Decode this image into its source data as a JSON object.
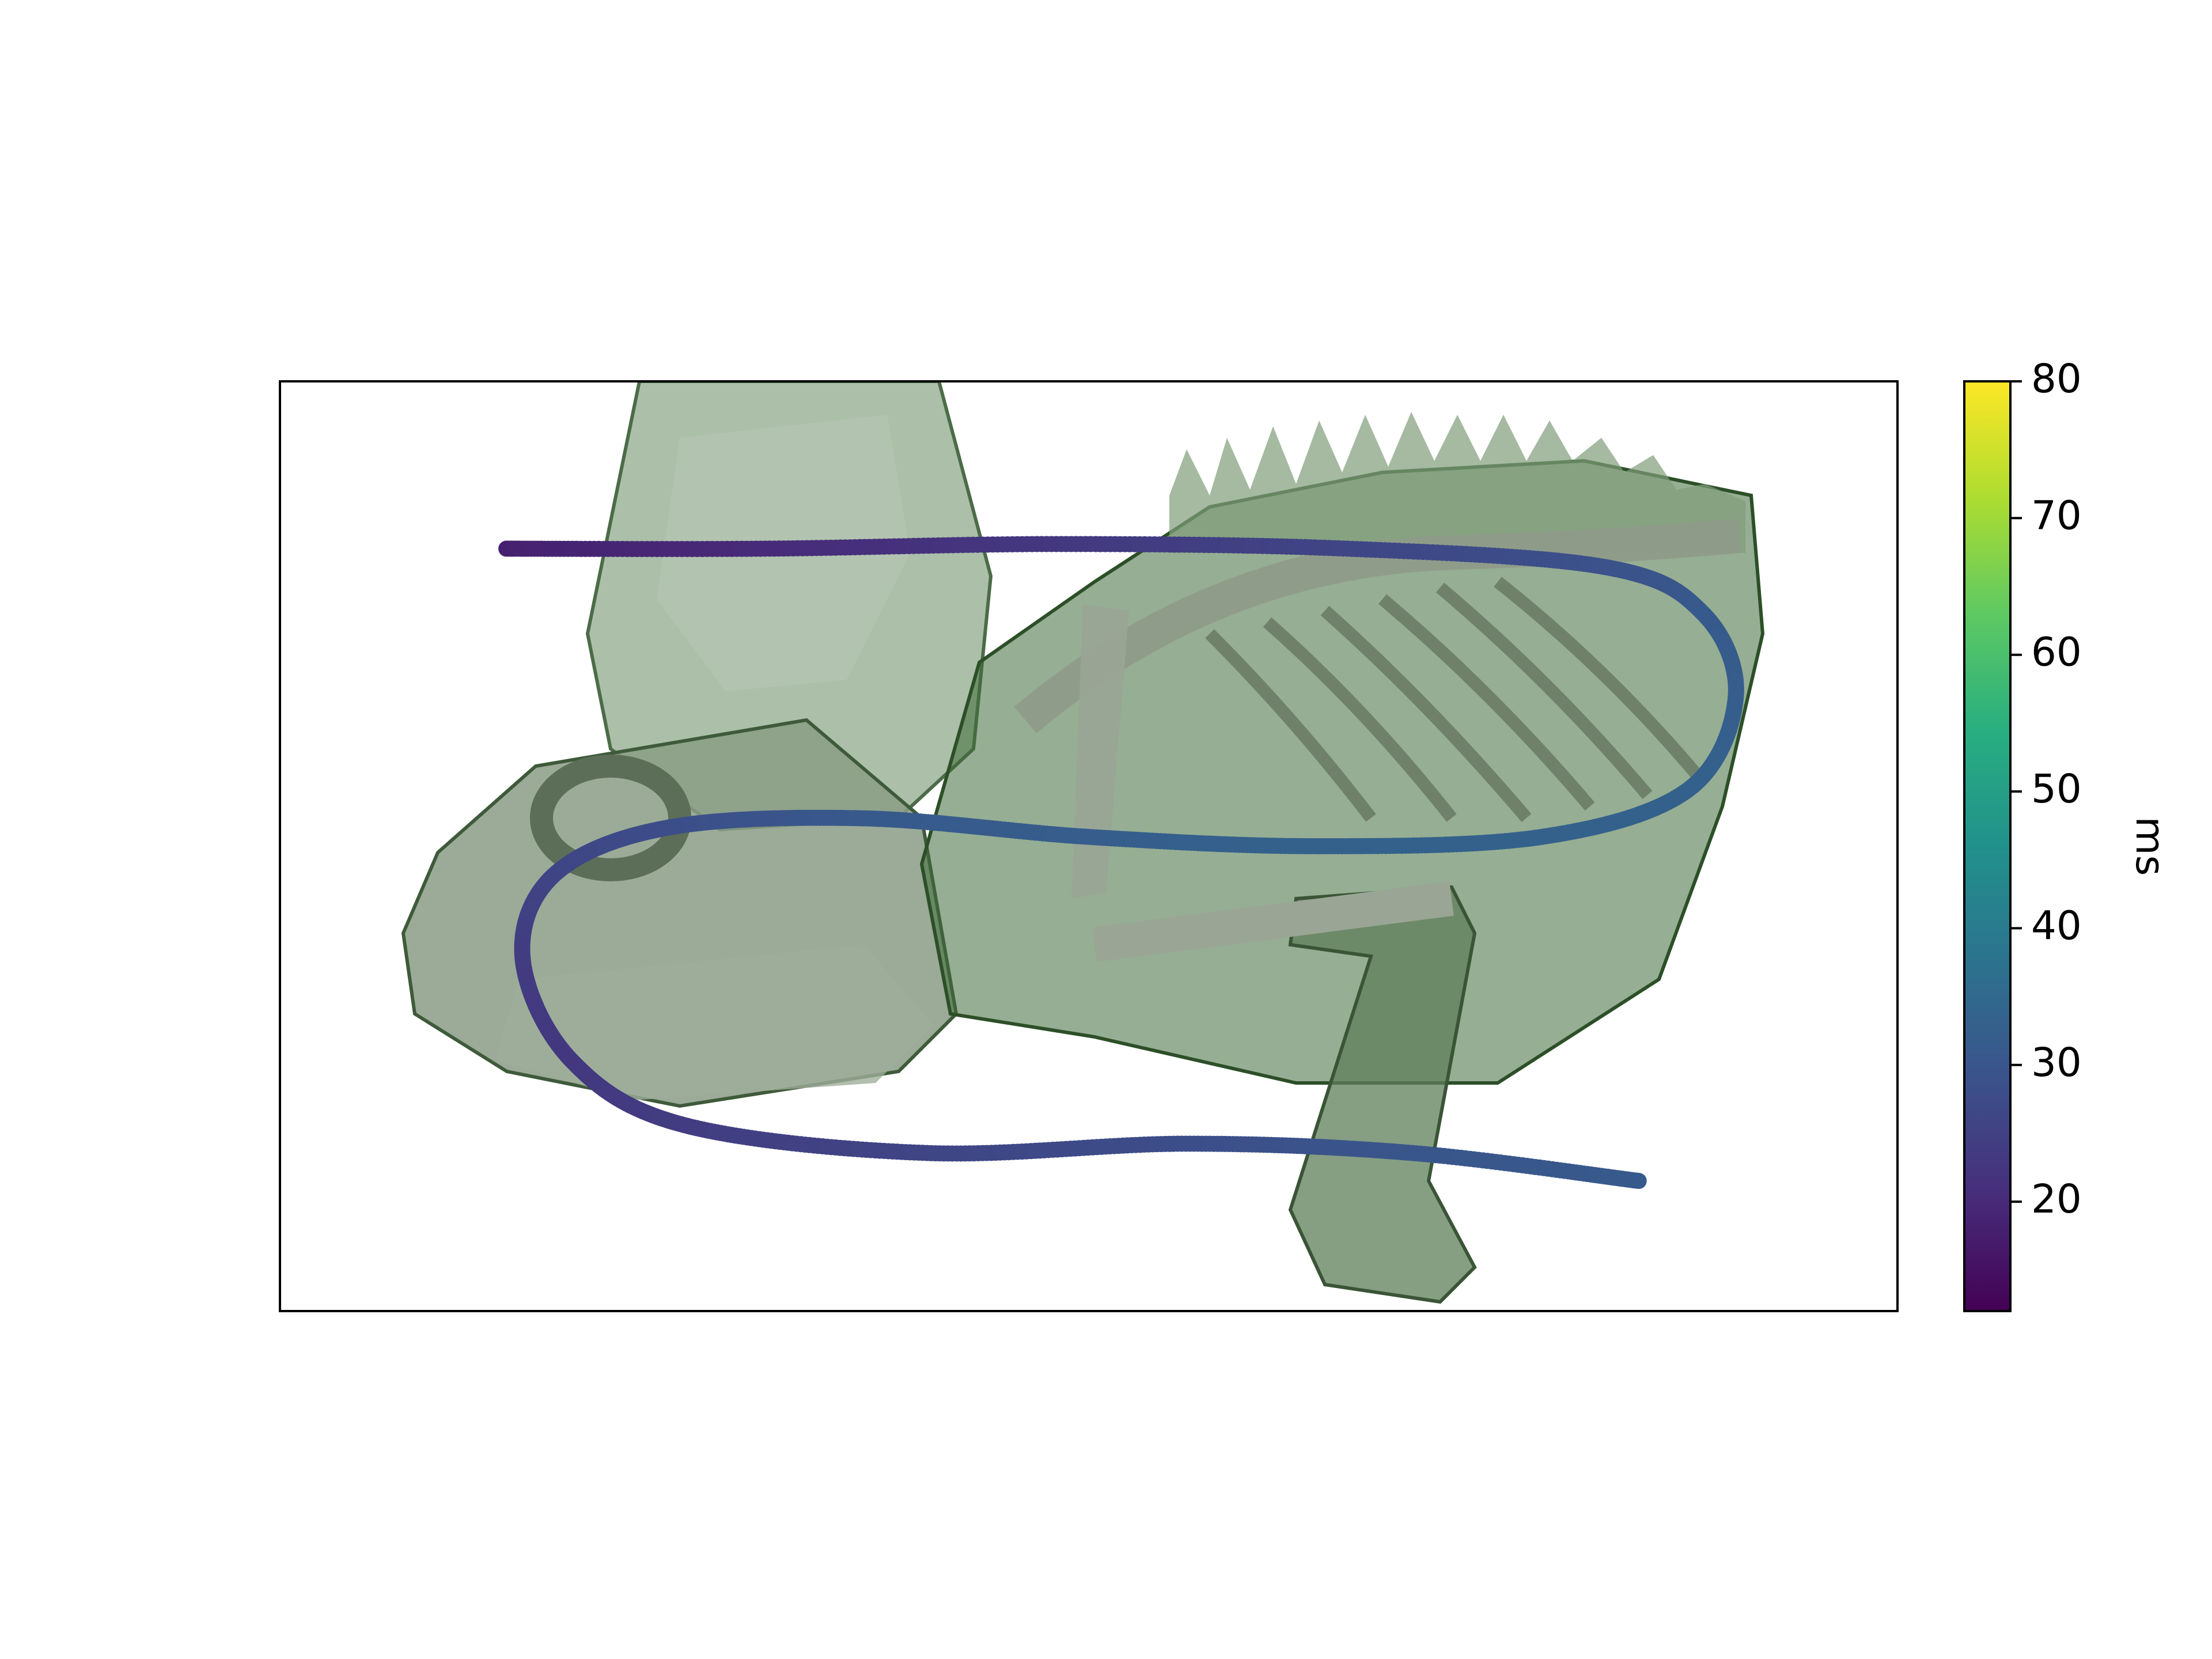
{
  "chart_data": {
    "type": "scatter",
    "title": "",
    "xlabel": "",
    "ylabel": "",
    "x_ticks_shown": false,
    "y_ticks_shown": false,
    "background_image": "ct-volume-render-chameleon-skeleton",
    "colormap": "viridis",
    "colorbar": {
      "label": "ms",
      "vmin": 12,
      "vmax": 80,
      "ticks": [
        20,
        30,
        40,
        50,
        60,
        70,
        80
      ],
      "tick_labels": [
        "20",
        "30",
        "40",
        "50",
        "60",
        "70",
        "80"
      ],
      "placement": "right"
    },
    "series": [
      {
        "marker": "circle",
        "points": [
          {
            "x": 0.14,
            "y": 0.18,
            "v": 18
          },
          {
            "x": 0.3,
            "y": 0.18,
            "v": 20
          },
          {
            "x": 0.48,
            "y": 0.175,
            "v": 23
          },
          {
            "x": 0.66,
            "y": 0.18,
            "v": 26
          },
          {
            "x": 0.82,
            "y": 0.2,
            "v": 29
          },
          {
            "x": 0.88,
            "y": 0.25,
            "v": 31
          },
          {
            "x": 0.9,
            "y": 0.34,
            "v": 32
          },
          {
            "x": 0.87,
            "y": 0.44,
            "v": 33
          },
          {
            "x": 0.78,
            "y": 0.49,
            "v": 33
          },
          {
            "x": 0.64,
            "y": 0.5,
            "v": 33
          },
          {
            "x": 0.5,
            "y": 0.49,
            "v": 32
          },
          {
            "x": 0.36,
            "y": 0.47,
            "v": 31
          },
          {
            "x": 0.24,
            "y": 0.48,
            "v": 28
          },
          {
            "x": 0.17,
            "y": 0.53,
            "v": 26
          },
          {
            "x": 0.15,
            "y": 0.62,
            "v": 24
          },
          {
            "x": 0.18,
            "y": 0.73,
            "v": 23
          },
          {
            "x": 0.25,
            "y": 0.8,
            "v": 24
          },
          {
            "x": 0.4,
            "y": 0.83,
            "v": 26
          },
          {
            "x": 0.56,
            "y": 0.82,
            "v": 28
          },
          {
            "x": 0.7,
            "y": 0.83,
            "v": 30
          },
          {
            "x": 0.84,
            "y": 0.86,
            "v": 31
          }
        ]
      }
    ]
  }
}
